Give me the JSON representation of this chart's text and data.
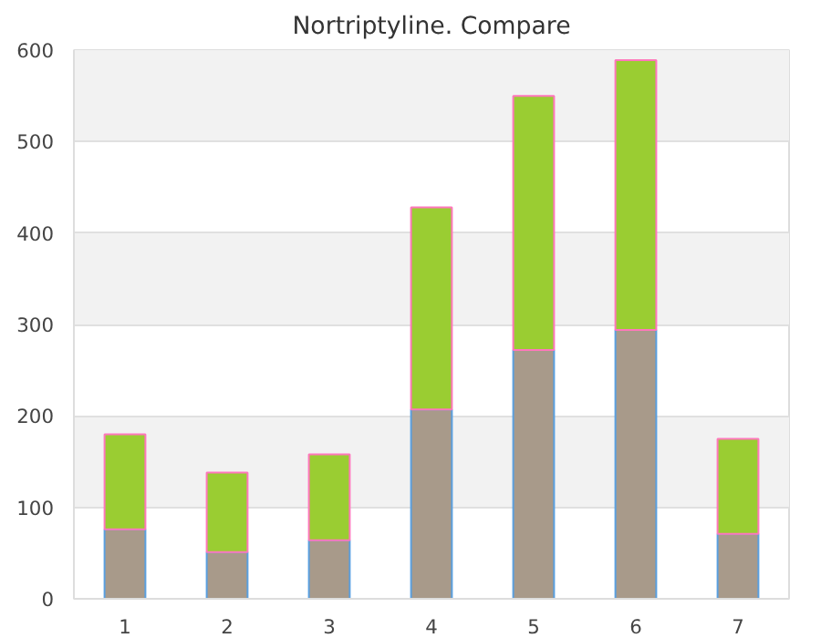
{
  "chart_data": {
    "type": "bar",
    "title": "Nortriptyline. Compare",
    "stacked": true,
    "categories": [
      "1",
      "2",
      "3",
      "4",
      "5",
      "6",
      "7"
    ],
    "series": [
      {
        "color": "#a89a8a",
        "values": [
          76,
          51,
          64,
          207,
          272,
          294,
          71
        ]
      },
      {
        "color": "#9acd32",
        "values": [
          104,
          87,
          94,
          221,
          278,
          295,
          104
        ]
      }
    ],
    "ylim": [
      0,
      600
    ],
    "yticks": [
      0,
      100,
      200,
      300,
      400,
      500,
      600
    ],
    "grid": "y"
  }
}
